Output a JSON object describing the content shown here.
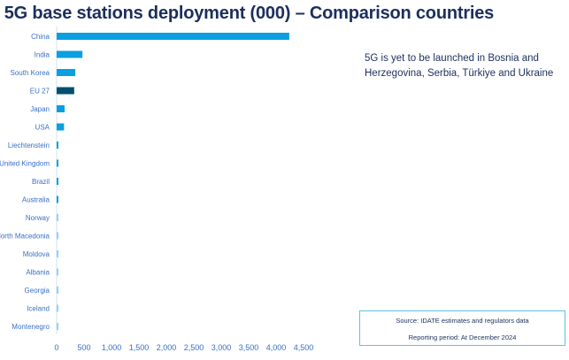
{
  "chart_data": {
    "type": "bar",
    "orientation": "horizontal",
    "title": "1. 5G base stations deployment (000) – Comparison countries",
    "title_visible": ". 5G base stations deployment (000) – Comparison countries",
    "categories": [
      "China",
      "India",
      "South Korea",
      "EU 27",
      "Japan",
      "USA",
      "Liechtenstein",
      "United Kingdom",
      "Brazil",
      "Australia",
      "Norway",
      "North Macedonia",
      "Moldova",
      "Albania",
      "Georgia",
      "Iceland",
      "Montenegro"
    ],
    "values": [
      4240,
      470,
      340,
      320,
      145,
      135,
      30,
      30,
      30,
      20,
      10,
      10,
      10,
      10,
      10,
      10,
      10
    ],
    "xlim": [
      0,
      4500
    ],
    "xticks": [
      "0",
      "500",
      "1,000",
      "1,500",
      "2,000",
      "2,500",
      "3,000",
      "3,500",
      "4,000",
      "4,500"
    ],
    "xtick_values": [
      0,
      500,
      1000,
      1500,
      2000,
      2500,
      3000,
      3500,
      4000,
      4500
    ],
    "colors": {
      "default": "#0a9fe0",
      "eu": "#00506f",
      "small": "#8fd4f0"
    },
    "grid": false
  },
  "note": "5G is yet to be launched in Bosnia and Herzegovina, Serbia, Türkiye and Ukraine",
  "source": {
    "line1": "Source: IDATE estimates and regulators data",
    "line2": "Reporting period: At December 2024"
  }
}
